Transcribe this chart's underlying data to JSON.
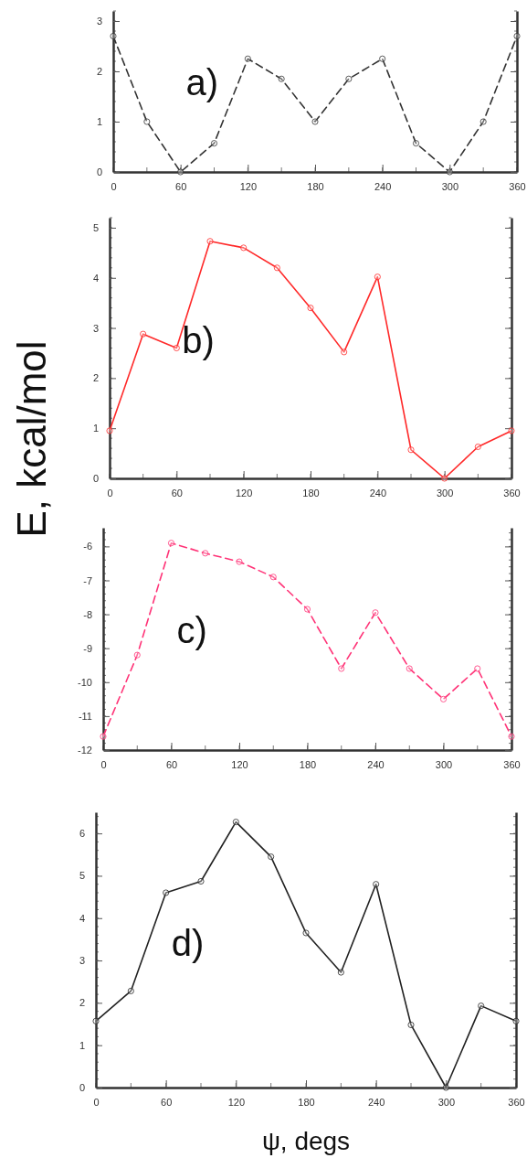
{
  "chart_data": [
    {
      "type": "line",
      "x": [
        0,
        30,
        60,
        90,
        120,
        150,
        180,
        210,
        240,
        270,
        300,
        330,
        360
      ],
      "series": [
        {
          "color": "#333333",
          "values": [
            2.7,
            1.0,
            0,
            0.57,
            2.25,
            1.85,
            1.0,
            1.85,
            2.25,
            0.57,
            0,
            1.0,
            2.7
          ]
        }
      ],
      "xlim": [
        0,
        360
      ],
      "xticks": [
        0,
        60,
        120,
        180,
        240,
        300,
        360
      ],
      "ylim": [
        0,
        3.2
      ],
      "yticks": [
        0,
        1,
        2,
        3
      ],
      "marker": "circle",
      "line_style": "dashed",
      "annotations": [
        "a)"
      ]
    },
    {
      "type": "line",
      "x": [
        0,
        30,
        60,
        90,
        120,
        150,
        180,
        210,
        240,
        270,
        300,
        330,
        360
      ],
      "series": [
        {
          "color": "#ff2a2a",
          "values": [
            0.95,
            2.88,
            2.6,
            4.73,
            4.6,
            4.2,
            3.4,
            2.52,
            4.02,
            0.57,
            0,
            0.63,
            0.95
          ]
        }
      ],
      "xlim": [
        0,
        360
      ],
      "xticks": [
        0,
        60,
        120,
        180,
        240,
        300,
        360
      ],
      "ylim": [
        0,
        5.2
      ],
      "yticks": [
        0,
        1,
        2,
        3,
        4,
        5
      ],
      "marker": "circle",
      "line_style": "solid",
      "ylabel": "E, kcal/mol",
      "annotations": [
        "b)"
      ]
    },
    {
      "type": "line",
      "x": [
        0,
        30,
        60,
        90,
        120,
        150,
        180,
        210,
        240,
        270,
        300,
        330,
        360
      ],
      "series": [
        {
          "color": "#ff3377",
          "values": [
            -11.6,
            -9.2,
            -5.9,
            -6.2,
            -6.45,
            -6.9,
            -7.85,
            -9.6,
            -7.95,
            -9.6,
            -10.5,
            -9.6,
            -11.6
          ]
        }
      ],
      "xlim": [
        0,
        360
      ],
      "xticks": [
        0,
        60,
        120,
        180,
        240,
        300,
        360
      ],
      "ylim": [
        -12,
        -5.45
      ],
      "yticks": [
        -12,
        -11,
        -10,
        -9,
        -8,
        -7,
        -6
      ],
      "marker": "circle",
      "line_style": "dashed",
      "annotations": [
        "c)"
      ]
    },
    {
      "type": "line",
      "x": [
        0,
        30,
        60,
        90,
        120,
        150,
        180,
        210,
        240,
        270,
        300,
        330,
        360
      ],
      "series": [
        {
          "color": "#222222",
          "values": [
            1.57,
            2.28,
            4.6,
            4.87,
            6.27,
            5.45,
            3.65,
            2.72,
            4.8,
            1.48,
            0,
            1.93,
            1.57
          ]
        }
      ],
      "xlim": [
        0,
        360
      ],
      "xticks": [
        0,
        60,
        120,
        180,
        240,
        300,
        360
      ],
      "ylim": [
        0,
        6.5
      ],
      "yticks": [
        0,
        1,
        2,
        3,
        4,
        5,
        6
      ],
      "marker": "circle",
      "line_style": "solid",
      "xlabel": "ψ, degs",
      "annotations": [
        "d)"
      ]
    }
  ]
}
